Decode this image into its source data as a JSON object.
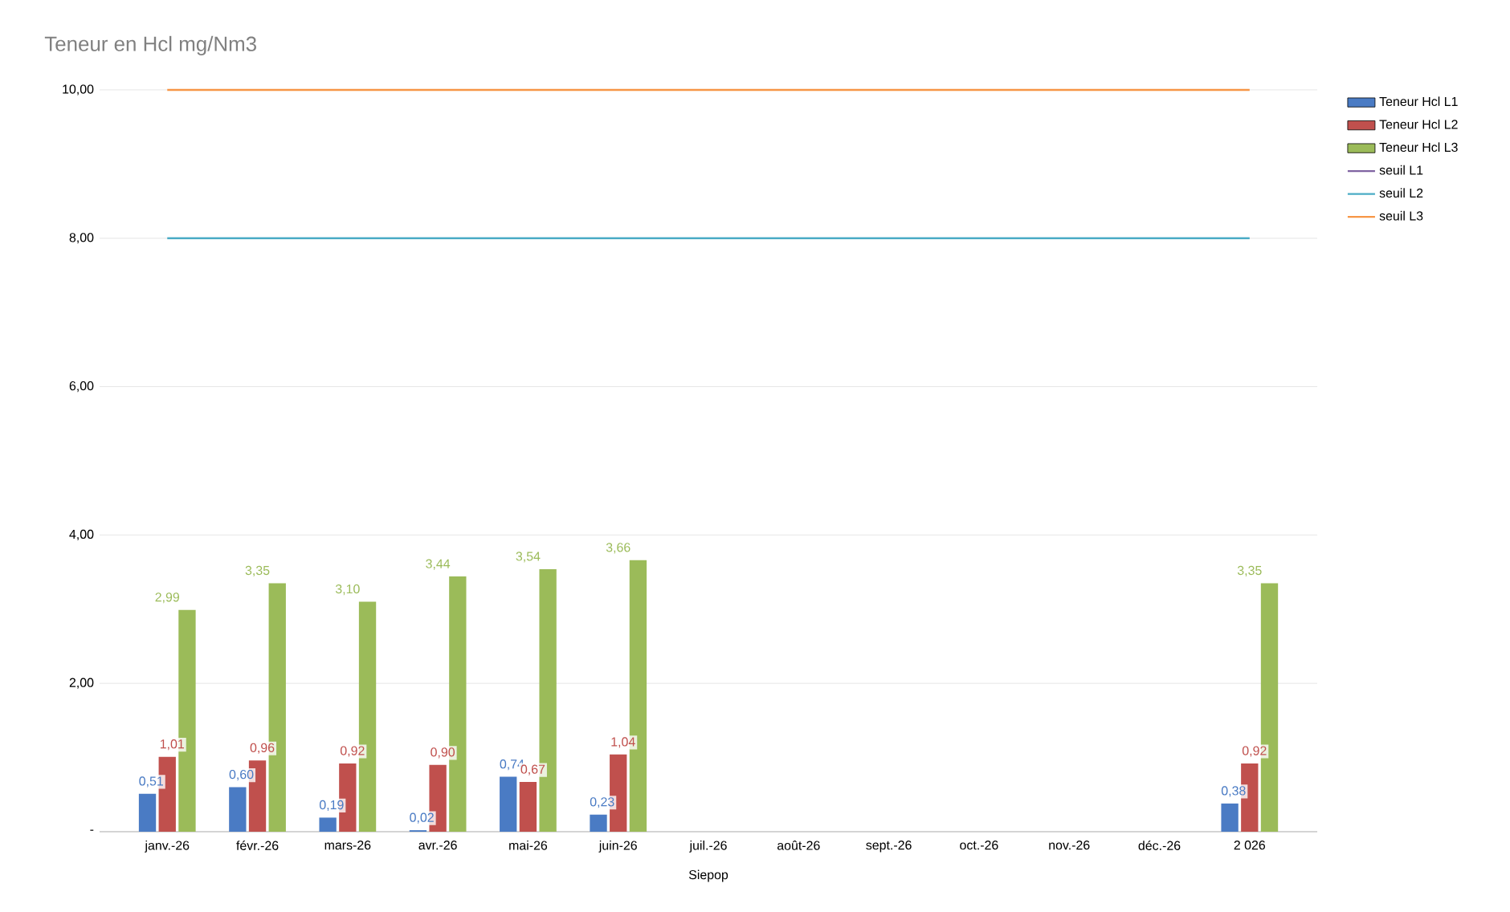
{
  "chart_data": {
    "type": "bar",
    "title": "Teneur en Hcl mg/Nm3",
    "xlabel": "Siepop",
    "categories": [
      "janv.-26",
      "févr.-26",
      "mars-26",
      "avr.-26",
      "mai-26",
      "juin-26",
      "juil.-26",
      "août-26",
      "sept.-26",
      "oct.-26",
      "nov.-26",
      "déc.-26",
      "2 026"
    ],
    "series": [
      {
        "name": "Teneur Hcl L1",
        "color": "#4a7bc4",
        "values": [
          0.51,
          0.6,
          0.19,
          0.02,
          0.74,
          0.23,
          null,
          null,
          null,
          null,
          null,
          null,
          0.38
        ],
        "value_labels": [
          "0,51",
          "0,60",
          "0,19",
          "0,02",
          "0,74",
          "0,23",
          null,
          null,
          null,
          null,
          null,
          null,
          "0,38"
        ]
      },
      {
        "name": "Teneur Hcl L2",
        "color": "#c0504d",
        "values": [
          1.01,
          0.96,
          0.92,
          0.9,
          0.67,
          1.04,
          null,
          null,
          null,
          null,
          null,
          null,
          0.92
        ],
        "value_labels": [
          "1,01",
          "0,96",
          "0,92",
          "0,90",
          "0,67",
          "1,04",
          null,
          null,
          null,
          null,
          null,
          null,
          "0,92"
        ]
      },
      {
        "name": "Teneur Hcl L3",
        "color": "#9bbb59",
        "values": [
          2.99,
          3.35,
          3.1,
          3.44,
          3.54,
          3.66,
          null,
          null,
          null,
          null,
          null,
          null,
          3.35
        ],
        "value_labels": [
          "2,99",
          "3,35",
          "3,10",
          "3,44",
          "3,54",
          "3,66",
          null,
          null,
          null,
          null,
          null,
          null,
          "3,35"
        ]
      },
      {
        "name": "seuil L1",
        "type": "line",
        "color": "#8064a2",
        "values": [
          null,
          null,
          null,
          null,
          null,
          null,
          null,
          null,
          null,
          null,
          null,
          null,
          null
        ]
      },
      {
        "name": "seuil L2",
        "type": "line",
        "color": "#4bacc6",
        "values": [
          8,
          8,
          8,
          8,
          8,
          8,
          8,
          8,
          8,
          8,
          8,
          8,
          8
        ]
      },
      {
        "name": "seuil L3",
        "type": "line",
        "color": "#f79646",
        "values": [
          10,
          10,
          10,
          10,
          10,
          10,
          10,
          10,
          10,
          10,
          10,
          10,
          10
        ]
      }
    ],
    "ylim": [
      0,
      10
    ],
    "yticks": [
      {
        "value": 0,
        "label": "-"
      },
      {
        "value": 2,
        "label": "2,00"
      },
      {
        "value": 4,
        "label": "4,00"
      },
      {
        "value": 6,
        "label": "6,00"
      },
      {
        "value": 8,
        "label": "8,00"
      },
      {
        "value": 10,
        "label": "10,00"
      }
    ],
    "grid": "y",
    "legend": "top right"
  }
}
